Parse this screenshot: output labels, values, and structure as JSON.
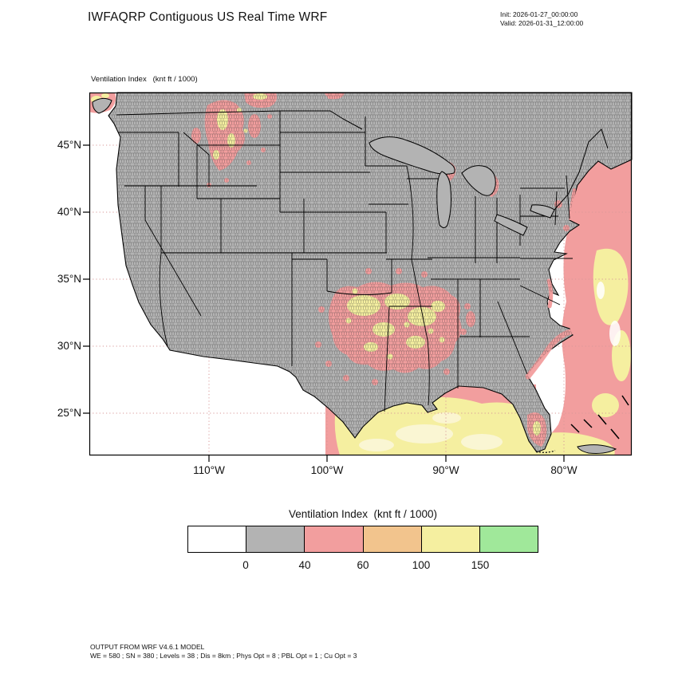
{
  "header": {
    "title": "IWFAQRP Contiguous US Real Time WRF",
    "init": "Init: 2026-01-27_00:00:00",
    "valid": "Valid: 2026-01-31_12:00:00"
  },
  "map": {
    "field_label": "Ventilation Index   (knt ft / 1000)",
    "lat_ticks": [
      "45°N",
      "40°N",
      "35°N",
      "30°N",
      "25°N"
    ],
    "lon_ticks": [
      "110°W",
      "100°W",
      "90°W",
      "80°W"
    ],
    "land_color": "#b3b3b3"
  },
  "legend": {
    "title": "Ventilation Index  (knt ft / 1000)",
    "colors": [
      "#ffffff",
      "#b3b3b3",
      "#f29e9e",
      "#f2c48d",
      "#f5efa0",
      "#a0e89a"
    ],
    "tick_labels": [
      "0",
      "40",
      "60",
      "100",
      "150"
    ]
  },
  "footer": {
    "line1": "OUTPUT FROM WRF V4.6.1 MODEL",
    "line2": "WE = 580 ; SN = 380 ; Levels = 38 ; Dis = 8km ; Phys Opt = 8 ; PBL Opt = 1 ; Cu Opt = 3"
  }
}
